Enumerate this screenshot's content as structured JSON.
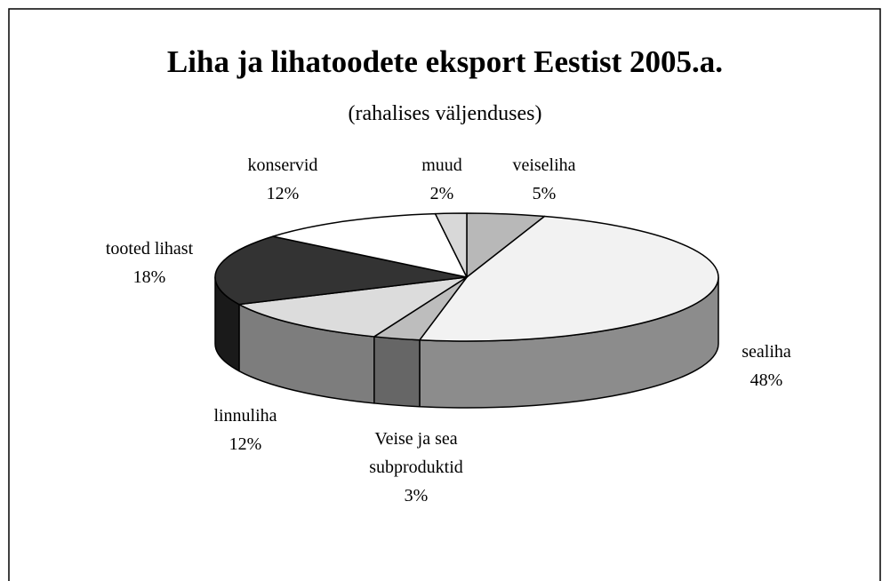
{
  "chart_data": {
    "type": "pie",
    "title": "Liha ja lihatoodete eksport Eestist 2005.a.",
    "subtitle": "(rahalises väljenduses)",
    "categories": [
      "veiseliha",
      "sealiha",
      "Veise ja sea subproduktid",
      "linnuliha",
      "tooted lihast",
      "konservid",
      "muud"
    ],
    "values": [
      5,
      48,
      3,
      12,
      18,
      12,
      2
    ],
    "value_labels": [
      "5%",
      "48%",
      "3%",
      "12%",
      "18%",
      "12%",
      "2%"
    ],
    "colors": [
      "#b8b8b8",
      "#f2f2f2",
      "#bdbdbd",
      "#dcdcdc",
      "#333333",
      "#ffffff",
      "#d8d8d8"
    ],
    "side_colors": [
      "#777777",
      "#8c8c8c",
      "#666666",
      "#7d7d7d",
      "#1a1a1a",
      "#cccccc",
      "#888888"
    ]
  }
}
